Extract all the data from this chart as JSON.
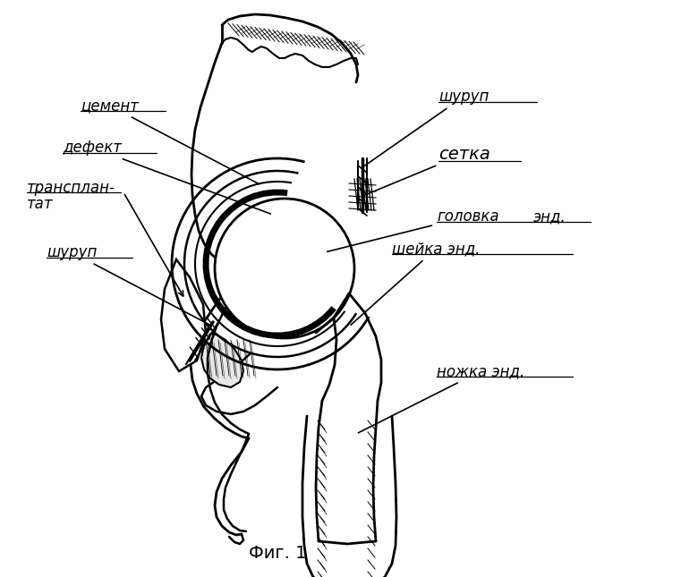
{
  "title": "Фиг. 1",
  "bg": "#ffffff",
  "lc": "#000000",
  "figsize": [
    7.8,
    6.45
  ],
  "dpi": 100,
  "labels": {
    "cement": "цемент",
    "defect": "дефект",
    "transplant_line1": "трансплан-",
    "transplant_line2": "тат",
    "screw_left": "шуруп",
    "screw_right": "шуруп",
    "mesh": "сетка",
    "head": "головка",
    "end": "энд.",
    "neck": "шейка энд.",
    "stem": "ножка энд.",
    "fig": "Фиг. 1"
  }
}
